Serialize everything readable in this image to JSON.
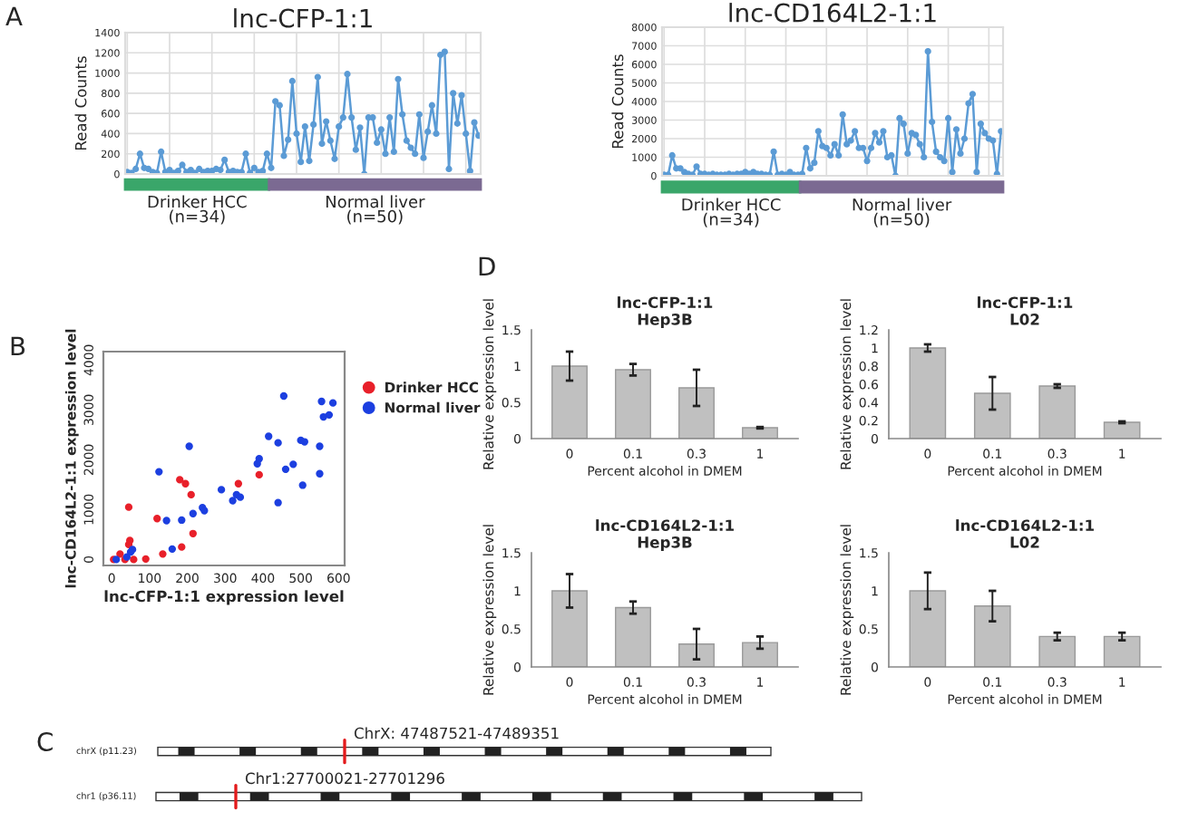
{
  "chart_data": [
    {
      "type": "line",
      "title": "lnc-CFP-1:1",
      "ylabel": "Read Counts",
      "annotations": [
        "A",
        "Drinker HCC\n(n=34)",
        "Normal liver\n(n=50)"
      ],
      "categories": [
        null,
        null,
        null,
        null,
        null,
        null,
        null,
        null,
        null,
        null,
        null,
        null,
        null,
        null,
        null,
        null,
        null,
        null,
        null,
        null,
        null,
        null,
        null,
        null,
        null,
        null,
        null,
        null,
        null,
        null,
        null,
        null,
        null,
        null,
        null,
        null,
        null,
        null,
        null,
        null,
        null,
        null,
        null,
        null,
        null,
        null,
        null,
        null,
        null,
        null,
        null,
        null,
        null,
        null,
        null,
        null,
        null,
        null,
        null,
        null,
        null,
        null,
        null,
        null,
        null,
        null,
        null,
        null,
        null,
        null,
        null,
        null,
        null,
        null,
        null,
        null,
        null,
        null,
        null,
        null,
        null,
        null,
        null,
        null
      ],
      "series": [
        {
          "color": "#5b9bd5",
          "values": [
            20,
            10,
            50,
            200,
            60,
            50,
            20,
            10,
            220,
            20,
            40,
            10,
            30,
            90,
            20,
            40,
            10,
            50,
            20,
            30,
            30,
            50,
            40,
            140,
            20,
            30,
            20,
            20,
            200,
            10,
            60,
            20,
            30,
            200,
            60,
            720,
            680,
            180,
            340,
            920,
            400,
            120,
            470,
            130,
            490,
            960,
            300,
            520,
            330,
            150,
            470,
            560,
            990,
            560,
            240,
            460,
            0,
            560,
            560,
            310,
            440,
            200,
            560,
            220,
            940,
            590,
            330,
            260,
            200,
            590,
            160,
            420,
            680,
            400,
            1180,
            1210,
            50,
            800,
            500,
            780,
            400,
            30,
            510,
            380
          ]
        }
      ],
      "ylim": [
        0,
        1400
      ],
      "yticks": [
        0,
        200,
        400,
        600,
        800,
        1000,
        1200,
        1400
      ],
      "grid": true,
      "marker": "circle",
      "tick_labels": "y"
    },
    {
      "type": "line",
      "title": "lnc-CD164L2-1:1",
      "ylabel": "Read Counts",
      "annotations": [
        "Drinker HCC\n(n=34)",
        "Normal liver\n(n=50)"
      ],
      "categories": [
        null,
        null,
        null,
        null,
        null,
        null,
        null,
        null,
        null,
        null,
        null,
        null,
        null,
        null,
        null,
        null,
        null,
        null,
        null,
        null,
        null,
        null,
        null,
        null,
        null,
        null,
        null,
        null,
        null,
        null,
        null,
        null,
        null,
        null,
        null,
        null,
        null,
        null,
        null,
        null,
        null,
        null,
        null,
        null,
        null,
        null,
        null,
        null,
        null,
        null,
        null,
        null,
        null,
        null,
        null,
        null,
        null,
        null,
        null,
        null,
        null,
        null,
        null,
        null,
        null,
        null,
        null,
        null,
        null,
        null,
        null,
        null,
        null,
        null,
        null,
        null,
        null,
        null,
        null,
        null,
        null,
        null,
        null,
        null
      ],
      "series": [
        {
          "color": "#5b9bd5",
          "values": [
            50,
            50,
            1100,
            400,
            400,
            200,
            100,
            50,
            500,
            100,
            100,
            50,
            100,
            50,
            50,
            50,
            100,
            50,
            100,
            100,
            200,
            100,
            200,
            100,
            100,
            50,
            50,
            1300,
            50,
            100,
            50,
            200,
            50,
            50,
            100,
            1500,
            400,
            700,
            2400,
            1600,
            1500,
            1100,
            1700,
            1100,
            3300,
            1700,
            1900,
            2400,
            1500,
            1500,
            800,
            1500,
            2300,
            1800,
            2400,
            1000,
            1100,
            0,
            3100,
            2800,
            1200,
            2300,
            2200,
            1700,
            1000,
            6700,
            2900,
            1300,
            1000,
            800,
            3100,
            200,
            2500,
            1200,
            2000,
            3900,
            4400,
            200,
            2800,
            2300,
            2000,
            1900,
            100,
            2400
          ]
        }
      ],
      "ylim": [
        0,
        8000
      ],
      "yticks": [
        0,
        1000,
        2000,
        3000,
        4000,
        5000,
        6000,
        7000,
        8000
      ],
      "grid": true,
      "marker": "circle",
      "tick_labels": "y"
    },
    {
      "type": "scatter",
      "xlabel": "lnc-CFP-1:1 expression level",
      "ylabel": "lnc-CD164L2-1:1 expression level",
      "annotations": [
        "B"
      ],
      "series": [
        {
          "name": "Drinker HCC",
          "color": "#e8202a",
          "x": [
            5,
            22,
            35,
            45,
            48,
            45,
            58,
            90,
            120,
            135,
            180,
            195,
            210,
            215,
            185,
            335,
            390
          ],
          "values": [
            0,
            110,
            0,
            300,
            380,
            1050,
            0,
            10,
            820,
            110,
            1600,
            1520,
            1300,
            520,
            250,
            1520,
            1700
          ]
        },
        {
          "name": "Normal liver",
          "color": "#1c3fe0",
          "x": [
            12,
            40,
            50,
            55,
            125,
            145,
            160,
            185,
            205,
            215,
            240,
            245,
            290,
            320,
            330,
            340,
            385,
            390,
            415,
            440,
            440,
            455,
            460,
            480,
            500,
            510,
            505,
            550,
            550,
            555,
            560,
            575,
            585
          ],
          "values": [
            0,
            50,
            150,
            200,
            1760,
            780,
            210,
            790,
            2270,
            920,
            1040,
            980,
            1400,
            1180,
            1300,
            1250,
            1920,
            2020,
            2470,
            2340,
            1140,
            3280,
            1810,
            1910,
            2390,
            2360,
            1490,
            2270,
            1720,
            3170,
            2860,
            2900,
            3140
          ]
        }
      ],
      "xlim": [
        -22,
        616
      ],
      "xticks": [
        0,
        100,
        200,
        300,
        400,
        500,
        600
      ],
      "ylim": [
        -120,
        4170
      ],
      "yticks": [
        0,
        1000,
        2000,
        3000,
        4000
      ],
      "legend": "right",
      "marker": "circle"
    },
    {
      "type": "bar",
      "title": "lnc-CFP-1:1\nHep3B",
      "xlabel": "Percent alcohol in DMEM",
      "ylabel": "Relative expression level",
      "annotations": [
        "D"
      ],
      "categories": [
        "0",
        "0.1",
        "0.3",
        "1"
      ],
      "values": [
        1.0,
        0.95,
        0.7,
        0.15
      ],
      "errors": [
        0.2,
        0.08,
        0.25,
        0.01
      ],
      "colors": [
        "#c0c0c0",
        "#c0c0c0",
        "#c0c0c0",
        "#c0c0c0"
      ],
      "ylim": [
        0,
        1.5
      ],
      "yticks": [
        0,
        0.5,
        1,
        1.5
      ]
    },
    {
      "type": "bar",
      "title": "lnc-CFP-1:1\nL02",
      "xlabel": "Percent alcohol in DMEM",
      "ylabel": "Relative expression level",
      "categories": [
        "0",
        "0.1",
        "0.3",
        "1"
      ],
      "values": [
        1.0,
        0.5,
        0.58,
        0.18
      ],
      "errors": [
        0.04,
        0.18,
        0.02,
        0.01
      ],
      "colors": [
        "#c0c0c0",
        "#c0c0c0",
        "#c0c0c0",
        "#c0c0c0"
      ],
      "ylim": [
        0,
        1.2
      ],
      "yticks": [
        0,
        0.2,
        0.4,
        0.6,
        0.8,
        1,
        1.2
      ]
    },
    {
      "type": "bar",
      "title": "lnc-CD164L2-1:1\nHep3B",
      "xlabel": "Percent alcohol in DMEM",
      "ylabel": "Relative expression level",
      "categories": [
        "0",
        "0.1",
        "0.3",
        "1"
      ],
      "values": [
        1.0,
        0.78,
        0.3,
        0.32
      ],
      "errors": [
        0.22,
        0.08,
        0.2,
        0.08
      ],
      "colors": [
        "#c0c0c0",
        "#c0c0c0",
        "#c0c0c0",
        "#c0c0c0"
      ],
      "ylim": [
        0,
        1.5
      ],
      "yticks": [
        0,
        0.5,
        1,
        1.5
      ]
    },
    {
      "type": "bar",
      "title": "lnc-CD164L2-1:1\nL02",
      "xlabel": "Percent alcohol in DMEM",
      "ylabel": "Relative expression level",
      "categories": [
        "0",
        "0.1",
        "0.3",
        "1"
      ],
      "values": [
        1.0,
        0.8,
        0.4,
        0.4
      ],
      "errors": [
        0.24,
        0.2,
        0.05,
        0.05
      ],
      "colors": [
        "#c0c0c0",
        "#c0c0c0",
        "#c0c0c0",
        "#c0c0c0"
      ],
      "ylim": [
        0,
        1.5
      ],
      "yticks": [
        0,
        0.5,
        1,
        1.5
      ]
    },
    {
      "type": "other",
      "annotations": [
        "C",
        "chrX (p11.23)",
        "ChrX: 47487521-47489351",
        "chr1 (p36.11)",
        "Chr1:27700021-27701296"
      ]
    }
  ]
}
